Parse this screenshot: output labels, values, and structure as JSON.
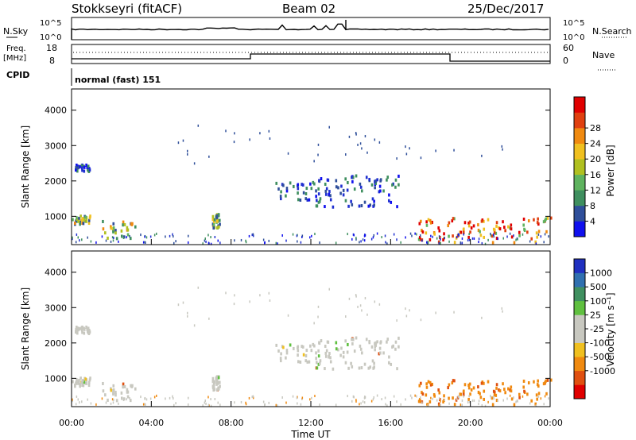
{
  "header": {
    "station": "Stokkseyri (fitACF)",
    "beam": "Beam 02",
    "date": "25/Dec/2017"
  },
  "top_panels": {
    "nsky_label": "N.Sky",
    "nsky_tick_high": "10^5",
    "nsky_tick_low": "10^0",
    "nsearch_label": "N.Search",
    "nsearch_tick_high": "10^5",
    "nsearch_tick_low": "10^0",
    "freq_label": "Freq.",
    "freq_unit": "[MHz]",
    "freq_tick_high": "18",
    "freq_tick_low": "8",
    "nave_label": "Nave",
    "nave_tick_high": "60",
    "nave_tick_low": "0",
    "cpid_label": "CPID",
    "cpid_value": "normal (fast) 151"
  },
  "chart_data": [
    {
      "type": "heatmap",
      "name": "power",
      "ylabel": "Slant Range [km]",
      "y_ticks": [
        "1000",
        "2000",
        "3000",
        "4000"
      ],
      "ylim": [
        200,
        4600
      ],
      "colorbar_label": "Power [dB]",
      "colorbar_ticks": [
        "4",
        "8",
        "12",
        "16",
        "20",
        "24",
        "28"
      ],
      "colors": [
        "#1010ee",
        "#2f4f9a",
        "#3f8f5f",
        "#5fb35f",
        "#b0c020",
        "#f0c020",
        "#f08a10",
        "#e04010",
        "#e00000"
      ],
      "regions": [
        {
          "x": [
            0.0,
            0.9
          ],
          "y": [
            800,
            1050
          ],
          "level": "mixed"
        },
        {
          "x": [
            0.1,
            0.9
          ],
          "y": [
            2300,
            2500
          ],
          "level": "low"
        },
        {
          "x": [
            1.5,
            3.2
          ],
          "y": [
            400,
            900
          ],
          "level": "mixed"
        },
        {
          "x": [
            7.0,
            7.4
          ],
          "y": [
            700,
            1100
          ],
          "level": "mid"
        },
        {
          "x": [
            10.2,
            12.2
          ],
          "y": [
            1500,
            2000
          ],
          "level": "low"
        },
        {
          "x": [
            12.2,
            16.6
          ],
          "y": [
            1300,
            2200
          ],
          "level": "low"
        },
        {
          "x": [
            17.3,
            24.0
          ],
          "y": [
            300,
            1000
          ],
          "level": "high"
        }
      ]
    },
    {
      "type": "heatmap",
      "name": "velocity",
      "ylabel": "Slant Range [km]",
      "y_ticks": [
        "1000",
        "2000",
        "3000",
        "4000"
      ],
      "ylim": [
        200,
        4600
      ],
      "colorbar_label": "Velocity [m s⁻¹]",
      "colorbar_ticks": [
        "1000",
        "500",
        "100",
        "25",
        "-25",
        "-100",
        "-500",
        "-1000"
      ],
      "colors": [
        "#2030c0",
        "#3070b0",
        "#409060",
        "#60c040",
        "#c8c8c0",
        "#c8c8c0",
        "#f0c020",
        "#f08a10",
        "#e05010",
        "#e00000"
      ],
      "xlabel": "Time UT",
      "x_ticks": [
        "00:00",
        "04:00",
        "08:00",
        "12:00",
        "16:00",
        "20:00",
        "00:00"
      ]
    }
  ]
}
